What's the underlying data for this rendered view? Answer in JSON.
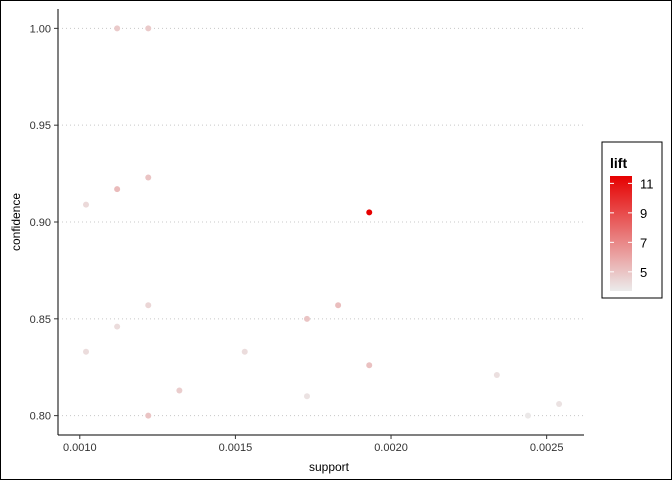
{
  "chart_data": {
    "type": "scatter",
    "title": "",
    "xlabel": "support",
    "ylabel": "confidence",
    "xlim": [
      0.00093,
      0.00262
    ],
    "ylim": [
      0.79,
      1.01
    ],
    "x_ticks": [
      {
        "value": 0.001,
        "label": "0.0010"
      },
      {
        "value": 0.0015,
        "label": "0.0015"
      },
      {
        "value": 0.002,
        "label": "0.0020"
      },
      {
        "value": 0.0025,
        "label": "0.0025"
      }
    ],
    "y_ticks": [
      {
        "value": 0.8,
        "label": "0.80"
      },
      {
        "value": 0.85,
        "label": "0.85"
      },
      {
        "value": 0.9,
        "label": "0.90"
      },
      {
        "value": 0.95,
        "label": "0.95"
      },
      {
        "value": 1.0,
        "label": "1.00"
      }
    ],
    "grid": "horizontal dotted",
    "legend": {
      "title": "lift",
      "position": "right",
      "range": [
        3.7,
        11.5
      ],
      "low_color": "#ebebeb",
      "high_color": "#e60000",
      "breaks": [
        {
          "value": 11,
          "label": "11"
        },
        {
          "value": 9,
          "label": "9"
        },
        {
          "value": 7,
          "label": "7"
        },
        {
          "value": 5,
          "label": "5"
        }
      ]
    },
    "points": [
      {
        "x": 0.00112,
        "y": 1.0,
        "lift": 4.8
      },
      {
        "x": 0.00122,
        "y": 1.0,
        "lift": 4.8
      },
      {
        "x": 0.00122,
        "y": 0.923,
        "lift": 5.0
      },
      {
        "x": 0.00112,
        "y": 0.917,
        "lift": 5.3
      },
      {
        "x": 0.00102,
        "y": 0.909,
        "lift": 4.3
      },
      {
        "x": 0.00193,
        "y": 0.905,
        "lift": 11.5
      },
      {
        "x": 0.00122,
        "y": 0.857,
        "lift": 4.4
      },
      {
        "x": 0.00183,
        "y": 0.857,
        "lift": 5.2
      },
      {
        "x": 0.00173,
        "y": 0.85,
        "lift": 5.0
      },
      {
        "x": 0.00112,
        "y": 0.846,
        "lift": 4.2
      },
      {
        "x": 0.00102,
        "y": 0.833,
        "lift": 4.2
      },
      {
        "x": 0.00153,
        "y": 0.833,
        "lift": 4.2
      },
      {
        "x": 0.00193,
        "y": 0.826,
        "lift": 5.1
      },
      {
        "x": 0.00234,
        "y": 0.821,
        "lift": 4.1
      },
      {
        "x": 0.00132,
        "y": 0.813,
        "lift": 4.7
      },
      {
        "x": 0.00173,
        "y": 0.81,
        "lift": 4.0
      },
      {
        "x": 0.00254,
        "y": 0.806,
        "lift": 4.0
      },
      {
        "x": 0.00122,
        "y": 0.8,
        "lift": 5.0
      },
      {
        "x": 0.00244,
        "y": 0.8,
        "lift": 3.8
      }
    ]
  }
}
